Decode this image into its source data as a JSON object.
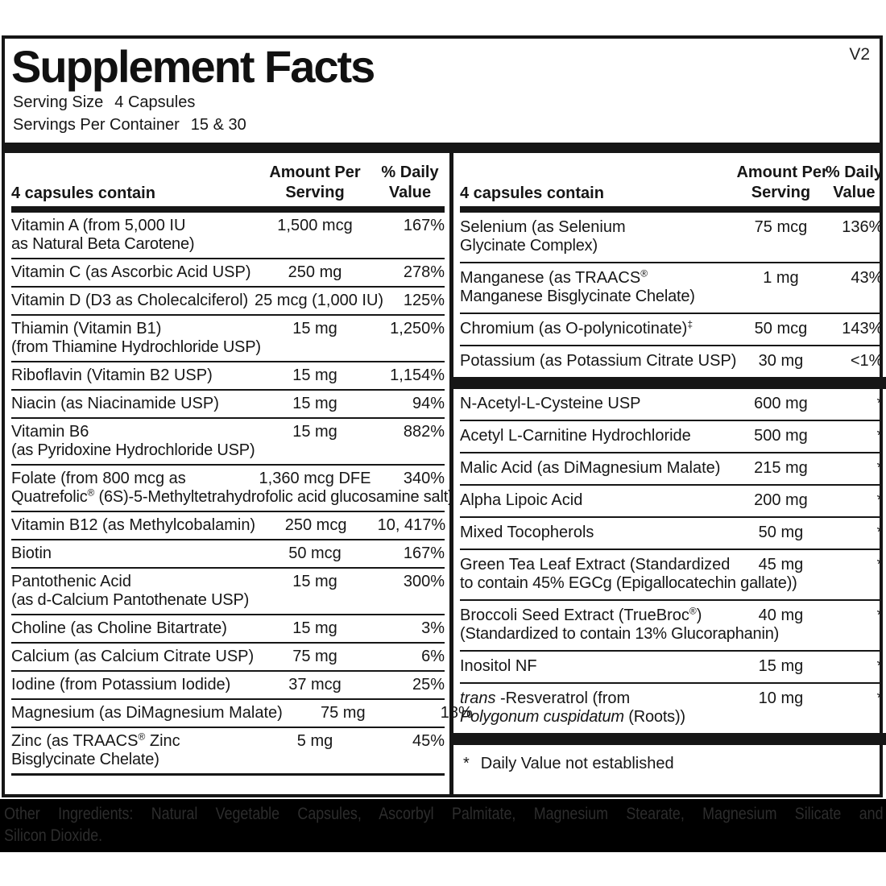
{
  "version": "V2",
  "title": "Supplement Facts",
  "serving": {
    "size_label": "Serving Size",
    "size_value": "4 Capsules",
    "per_container_label": "Servings Per Container",
    "per_container_value": "15 & 30"
  },
  "table_header": {
    "contain_label": "4 capsules contain",
    "amount_line1": "Amount Per",
    "amount_line2": "Serving",
    "dv_line1": "% Daily",
    "dv_line2": "Value"
  },
  "left_rows": [
    {
      "lines": [
        "Vitamin A (from 5,000 IU",
        "as Natural Beta Carotene)"
      ],
      "amount": "1,500 mcg",
      "dv": "167%"
    },
    {
      "lines": [
        "Vitamin C (as Ascorbic Acid USP)"
      ],
      "amount": "250 mg",
      "dv": "278%"
    },
    {
      "lines": [
        "Vitamin D (D3 as Cholecalciferol)"
      ],
      "amount": "25 mcg (1,000 IU)",
      "dv": "125%"
    },
    {
      "lines": [
        "Thiamin (Vitamin B1)",
        "(from Thiamine Hydrochloride USP)"
      ],
      "amount": "15 mg",
      "dv": "1,250%"
    },
    {
      "lines": [
        "Riboflavin (Vitamin B2 USP)"
      ],
      "amount": "15 mg",
      "dv": "1,154%"
    },
    {
      "lines": [
        "Niacin (as Niacinamide USP)"
      ],
      "amount": "15 mg",
      "dv": "94%"
    },
    {
      "lines": [
        "Vitamin B6",
        "(as Pyridoxine Hydrochloride USP)"
      ],
      "amount": "15 mg",
      "dv": "882%"
    },
    {
      "lines": [
        "Folate (from 800 mcg as",
        "Quatrefolic® (6S)-5-Methyltetrahydrofolic acid glucosamine salt)"
      ],
      "amount": "1,360 mcg DFE",
      "dv": "340%"
    },
    {
      "lines": [
        "Vitamin B12 (as Methylcobalamin)"
      ],
      "amount": "250 mcg",
      "dv": "10, 417%"
    },
    {
      "lines": [
        "Biotin"
      ],
      "amount": "50 mcg",
      "dv": "167%"
    },
    {
      "lines": [
        "Pantothenic Acid",
        "(as d-Calcium Pantothenate USP)"
      ],
      "amount": "15 mg",
      "dv": "300%"
    },
    {
      "lines": [
        "Choline (as Choline Bitartrate)"
      ],
      "amount": "15 mg",
      "dv": "3%"
    },
    {
      "lines": [
        "Calcium (as Calcium Citrate USP)"
      ],
      "amount": "75 mg",
      "dv": "6%"
    },
    {
      "lines": [
        "Iodine (from Potassium Iodide)"
      ],
      "amount": "37 mcg",
      "dv": "25%"
    },
    {
      "lines": [
        "Magnesium (as DiMagnesium Malate)"
      ],
      "amount": "75 mg",
      "dv": "18%"
    },
    {
      "lines": [
        "Zinc (as TRAACS® Zinc",
        "Bisglycinate Chelate)"
      ],
      "amount": "5 mg",
      "dv": "45%",
      "sep": "medium"
    }
  ],
  "right_rows": [
    {
      "lines": [
        "Selenium (as Selenium",
        "Glycinate Complex)"
      ],
      "amount": "75 mcg",
      "dv": "136%"
    },
    {
      "lines": [
        "Manganese (as TRAACS®",
        "Manganese Bisglycinate Chelate)"
      ],
      "amount": "1 mg",
      "dv": "43%"
    },
    {
      "lines": [
        "Chromium (as O-polynicotinate)‡"
      ],
      "amount": "50 mcg",
      "dv": "143%"
    },
    {
      "lines": [
        "Potassium (as Potassium Citrate USP)"
      ],
      "amount": "30 mg",
      "dv": "<1%",
      "sep": "bar"
    },
    {
      "lines": [
        "N-Acetyl-L-Cysteine USP"
      ],
      "amount": "600 mg",
      "dv": "*"
    },
    {
      "lines": [
        "Acetyl L-Carnitine Hydrochloride"
      ],
      "amount": "500 mg",
      "dv": "*"
    },
    {
      "lines": [
        "Malic Acid (as DiMagnesium Malate)"
      ],
      "amount": "215 mg",
      "dv": "*"
    },
    {
      "lines": [
        "Alpha Lipoic Acid"
      ],
      "amount": "200 mg",
      "dv": "*"
    },
    {
      "lines": [
        "Mixed Tocopherols"
      ],
      "amount": "50 mg",
      "dv": "*"
    },
    {
      "lines": [
        "Green Tea Leaf Extract (Standardized",
        "to contain 45% EGCg (Epigallocatechin gallate))"
      ],
      "amount": "45 mg",
      "dv": "*"
    },
    {
      "lines": [
        "Broccoli Seed Extract (TrueBroc®)",
        "(Standardized to contain 13% Glucoraphanin)"
      ],
      "amount": "40 mg",
      "dv": "*"
    },
    {
      "lines": [
        "Inositol NF"
      ],
      "amount": "15 mg",
      "dv": "*"
    },
    {
      "lines": [
        "*trans* -Resveratrol (from",
        "*Polygonum cuspidatum* (Roots))"
      ],
      "amount": "10 mg",
      "dv": "*",
      "sep": "bar"
    }
  ],
  "footnote": {
    "symbol": "*",
    "text": "Daily Value not established"
  },
  "other_ingredients": {
    "line1": "Other Ingredients: Natural Vegetable Capsules, Ascorbyl Palmitate, Magnesium Stearate, Magnesium Silicate and",
    "line2": "Silicon Dioxide."
  }
}
